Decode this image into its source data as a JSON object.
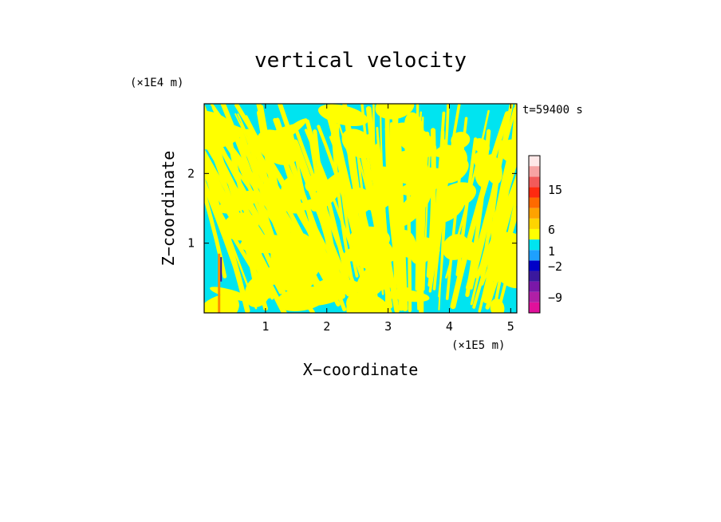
{
  "chart_data": {
    "type": "heatmap",
    "title": "vertical velocity",
    "xlabel": "X−coordinate",
    "ylabel": "Z−coordinate",
    "x_scale_label": "(×1E5 m)",
    "y_scale_label": "(×1E4 m)",
    "time_label": "t=59400 s",
    "xlim": [
      0,
      5.1
    ],
    "ylim": [
      0,
      3
    ],
    "x_ticks": [
      "1",
      "2",
      "3",
      "4",
      "5"
    ],
    "y_ticks": [
      "1",
      "2"
    ],
    "grid": false,
    "colorbar": {
      "tick_labels": [
        "15",
        "6",
        "1",
        "−2",
        "−9"
      ],
      "tick_values": [
        15,
        6,
        1,
        -2,
        -9
      ],
      "colors": [
        "#e0119b",
        "#b01fa6",
        "#7a18a8",
        "#3a189e",
        "#0000c8",
        "#1ea0ff",
        "#00e4f0",
        "#ffff00",
        "#ffd400",
        "#ffa200",
        "#ff6a00",
        "#ff2a10",
        "#f25a5a",
        "#f7a3a3",
        "#ffe8e8"
      ]
    },
    "field_colors": {
      "positive_small": "#ffff00",
      "negative_small": "#00e4f0",
      "strong_up": "#ff8c00",
      "strong_down": "#3a189e"
    }
  }
}
